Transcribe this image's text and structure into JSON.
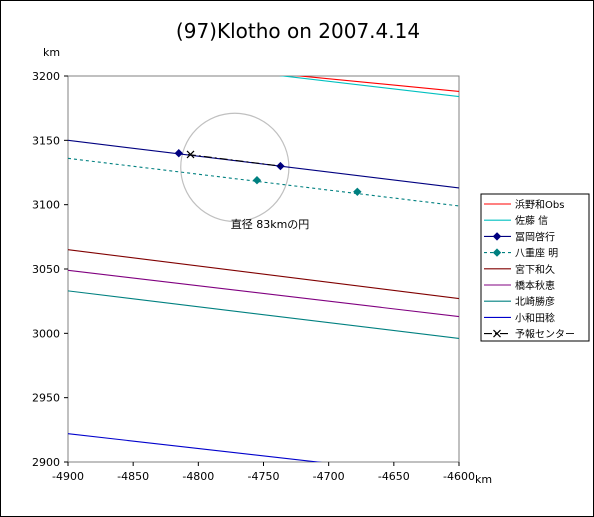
{
  "chart_data": {
    "type": "line",
    "title": "(97)Klotho on 2007.4.14",
    "xlabel": "km",
    "ylabel": "km",
    "xlim": [
      -4900,
      -4600
    ],
    "ylim": [
      2900,
      3200
    ],
    "xticks": [
      -4900,
      -4850,
      -4800,
      -4750,
      -4700,
      -4650,
      -4600
    ],
    "yticks": [
      2900,
      2950,
      3000,
      3050,
      3100,
      3150,
      3200
    ],
    "grid": false,
    "legend_position": "right",
    "series": [
      {
        "name": "浜野和Obs",
        "color": "#ff0000",
        "style": "solid",
        "marker": "none",
        "x": [
          -4742,
          -4600
        ],
        "y": [
          3202,
          3188
        ]
      },
      {
        "name": "佐藤 信",
        "color": "#00c0c0",
        "style": "solid",
        "marker": "none",
        "x": [
          -4760,
          -4600
        ],
        "y": [
          3203,
          3184
        ]
      },
      {
        "name": "冨岡啓行",
        "color": "#000080",
        "style": "solid",
        "marker": "diamond",
        "x": [
          -4900,
          -4600
        ],
        "y": [
          3150,
          3113
        ],
        "markers_x": [
          -4815,
          -4737
        ],
        "markers_y": [
          3140,
          3130
        ]
      },
      {
        "name": "八重座 明",
        "color": "#008080",
        "style": "dashed",
        "marker": "diamond",
        "x": [
          -4900,
          -4600
        ],
        "y": [
          3136,
          3099
        ],
        "markers_x": [
          -4755,
          -4678
        ],
        "markers_y": [
          3119,
          3110
        ]
      },
      {
        "name": "宮下和久",
        "color": "#800000",
        "style": "solid",
        "marker": "none",
        "x": [
          -4900,
          -4600
        ],
        "y": [
          3065,
          3027
        ]
      },
      {
        "name": "橋本秋恵",
        "color": "#800080",
        "style": "solid",
        "marker": "none",
        "x": [
          -4900,
          -4600
        ],
        "y": [
          3049,
          3013
        ]
      },
      {
        "name": "北崎勝彦",
        "color": "#008080",
        "style": "solid",
        "marker": "none",
        "x": [
          -4900,
          -4600
        ],
        "y": [
          3033,
          2996
        ]
      },
      {
        "name": "小和田稔",
        "color": "#0000cc",
        "style": "solid",
        "marker": "none",
        "x": [
          -4900,
          -4700
        ],
        "y": [
          2922,
          2899
        ]
      },
      {
        "name": "予報センター",
        "color": "#000000",
        "style": "dashdot",
        "marker": "x",
        "x": [
          -4808,
          -4737
        ],
        "y": [
          3139,
          3130
        ],
        "markers_x": [
          -4806
        ],
        "markers_y": [
          3139
        ]
      }
    ],
    "circle": {
      "center_x": -4772,
      "center_y": 3129,
      "diameter": 83,
      "color": "#c0c0c0"
    },
    "annotations": [
      {
        "text": "直径 83kmの円",
        "x": -4745,
        "y": 3082
      }
    ]
  }
}
